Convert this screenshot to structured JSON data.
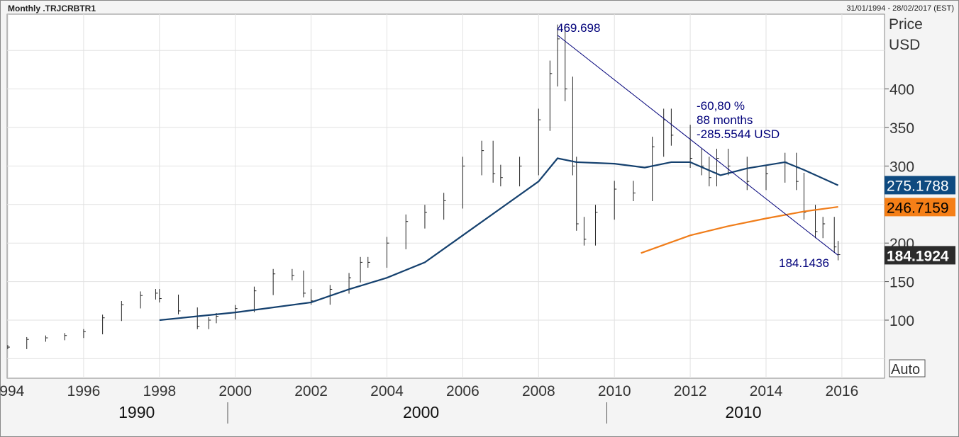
{
  "header": {
    "title": "Monthly .TRJCRBTR1",
    "date_range": "31/01/1994 - 28/02/2017 (EST)"
  },
  "chart_data": {
    "type": "line",
    "ylabel": "Price USD",
    "ylabel_lines": [
      "Price",
      "USD"
    ],
    "ylim": [
      40,
      510
    ],
    "xlim": [
      1994,
      2017
    ],
    "yticks": [
      100,
      150,
      200,
      250,
      300,
      350,
      400
    ],
    "ytick_labels": [
      "100",
      "150",
      "200",
      "",
      "300",
      "350",
      "400"
    ],
    "xticks": [
      1994,
      1996,
      1998,
      2000,
      2002,
      2004,
      2006,
      2008,
      2010,
      2012,
      2014,
      2016
    ],
    "xtick_labels": [
      "1994",
      "1996",
      "1998",
      "2000",
      "2002",
      "2004",
      "2006",
      "2008",
      "2010",
      "2012",
      "2014",
      "2016"
    ],
    "decades": [
      {
        "label": "1990",
        "x": 1997.4
      },
      {
        "label": "2000",
        "x": 2004.9
      },
      {
        "label": "2010",
        "x": 2013.4
      }
    ],
    "decade_separators": [
      1999.8,
      2009.8
    ],
    "grid": true,
    "price_series": {
      "style": "ohlc-bars",
      "color": "#222222",
      "x": [
        1994.0,
        1994.5,
        1995.0,
        1995.5,
        1996.0,
        1996.5,
        1997.0,
        1997.5,
        1997.9,
        1998.0,
        1998.5,
        1999.0,
        1999.3,
        1999.5,
        2000.0,
        2000.5,
        2001.0,
        2001.5,
        2001.8,
        2002.0,
        2002.5,
        2003.0,
        2003.3,
        2003.5,
        2004.0,
        2004.5,
        2005.0,
        2005.5,
        2006.0,
        2006.5,
        2006.8,
        2007.0,
        2007.5,
        2008.0,
        2008.3,
        2008.5,
        2008.7,
        2008.9,
        2009.0,
        2009.2,
        2009.5,
        2010.0,
        2010.5,
        2011.0,
        2011.3,
        2011.5,
        2012.0,
        2012.3,
        2012.5,
        2012.7,
        2013.0,
        2013.5,
        2014.0,
        2014.5,
        2014.8,
        2015.0,
        2015.3,
        2015.5,
        2015.8,
        2015.9
      ],
      "values": [
        65,
        75,
        77,
        80,
        85,
        103,
        120,
        132,
        135,
        128,
        112,
        92,
        100,
        105,
        115,
        138,
        160,
        158,
        135,
        125,
        140,
        155,
        175,
        175,
        200,
        228,
        240,
        255,
        300,
        320,
        290,
        285,
        300,
        360,
        420,
        465,
        400,
        300,
        225,
        205,
        240,
        270,
        265,
        325,
        360,
        340,
        310,
        300,
        285,
        310,
        300,
        280,
        290,
        305,
        280,
        240,
        215,
        225,
        195,
        185
      ]
    },
    "series": [
      {
        "color": "#14406e",
        "x": [
          1998.0,
          2000,
          2002,
          2003,
          2004,
          2005,
          2006,
          2007,
          2008,
          2008.5,
          2009,
          2010,
          2010.8,
          2011.5,
          2012,
          2012.8,
          2013.5,
          2014.5,
          2015,
          2015.9
        ],
        "values": [
          100,
          110,
          123,
          140,
          155,
          175,
          210,
          245,
          280,
          310,
          305,
          303,
          298,
          305,
          305,
          288,
          297,
          305,
          295,
          275
        ]
      },
      {
        "color": "#f07d1a",
        "x": [
          2010.7,
          2012,
          2013,
          2014,
          2015,
          2015.9
        ],
        "values": [
          187,
          210,
          222,
          232,
          241,
          247
        ]
      }
    ],
    "trendline": {
      "color": "#00007a",
      "from": [
        2008.5,
        469.698
      ],
      "to": [
        2015.9,
        184.1436
      ],
      "high_label": "469.698",
      "low_label": "184.1436",
      "stats": [
        "-60,80 %",
        "88 months",
        "-285.5544 USD"
      ]
    },
    "last_value_tags": [
      {
        "label": "275.1788",
        "value": 275.1788,
        "bg": "#0e4a80",
        "fg": "#ffffff"
      },
      {
        "label": "246.7159",
        "value": 246.7159,
        "bg": "#f57f17",
        "fg": "#000000"
      },
      {
        "label": "184.1924",
        "value": 184.1924,
        "bg": "#2b2b2b",
        "fg": "#ffffff"
      }
    ],
    "auto_button": "Auto"
  }
}
